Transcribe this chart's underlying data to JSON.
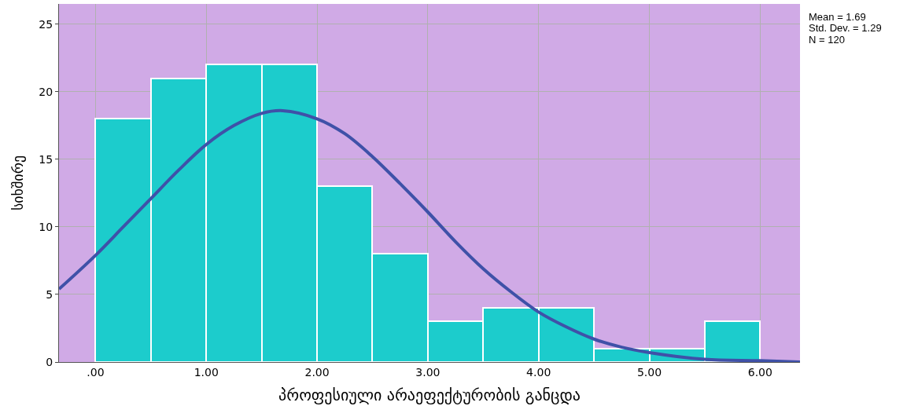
{
  "chart_data": {
    "type": "histogram",
    "xlabel": "პროფესიული არაეფექტურობის განცდა",
    "ylabel": "სიხშირე",
    "bins": [
      0,
      0.5,
      1,
      1.5,
      2,
      2.5,
      3,
      3.5,
      4,
      4.5,
      5,
      5.5,
      6
    ],
    "values": [
      18,
      21,
      22,
      22,
      13,
      8,
      3,
      4,
      4,
      1,
      1,
      3
    ],
    "color": "#1ccccc",
    "series": [
      {
        "type": "line",
        "color": "#3f51a8",
        "x": [
          -0.33,
          0,
          0.25,
          0.5,
          0.75,
          1,
          1.25,
          1.5,
          1.69,
          2,
          2.25,
          2.5,
          2.75,
          3,
          3.25,
          3.5,
          3.75,
          4,
          4.25,
          4.5,
          4.75,
          5,
          5.5,
          6,
          6.36
        ],
        "values": [
          5.4,
          7.9,
          10.0,
          12.1,
          14.2,
          16.1,
          17.5,
          18.4,
          18.6,
          18.0,
          16.9,
          15.2,
          13.2,
          11.1,
          8.9,
          6.9,
          5.2,
          3.7,
          2.6,
          1.7,
          1.1,
          0.7,
          0.2,
          0.1,
          0.0
        ]
      }
    ],
    "xlim": [
      -0.33,
      6.36
    ],
    "ylim": [
      0,
      26.5
    ],
    "xticks": [
      {
        "value": 0,
        "label": ".00"
      },
      {
        "value": 1,
        "label": "1.00"
      },
      {
        "value": 2,
        "label": "2.00"
      },
      {
        "value": 3,
        "label": "3.00"
      },
      {
        "value": 4,
        "label": "4.00"
      },
      {
        "value": 5,
        "label": "5.00"
      },
      {
        "value": 6,
        "label": "6.00"
      }
    ],
    "yticks": [
      0,
      5,
      10,
      15,
      20,
      25
    ],
    "grid": true,
    "annotations": [
      "Mean = 1.69",
      "Std. Dev. = 1.29",
      "N = 120"
    ]
  }
}
